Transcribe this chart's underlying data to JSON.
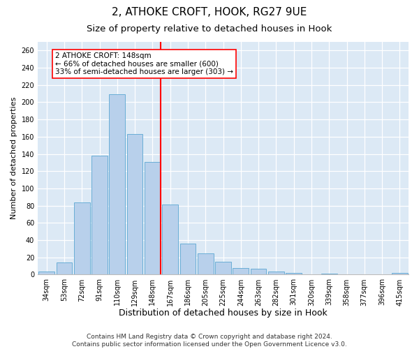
{
  "title": "2, ATHOKE CROFT, HOOK, RG27 9UE",
  "subtitle": "Size of property relative to detached houses in Hook",
  "xlabel": "Distribution of detached houses by size in Hook",
  "ylabel": "Number of detached properties",
  "categories": [
    "34sqm",
    "53sqm",
    "72sqm",
    "91sqm",
    "110sqm",
    "129sqm",
    "148sqm",
    "167sqm",
    "186sqm",
    "205sqm",
    "225sqm",
    "244sqm",
    "263sqm",
    "282sqm",
    "301sqm",
    "320sqm",
    "339sqm",
    "358sqm",
    "377sqm",
    "396sqm",
    "415sqm"
  ],
  "values": [
    4,
    14,
    84,
    138,
    209,
    163,
    131,
    81,
    36,
    25,
    15,
    8,
    7,
    4,
    2,
    0,
    1,
    0,
    0,
    0,
    2
  ],
  "bar_color": "#b8d0eb",
  "bar_edge_color": "#6aaed6",
  "marker_index": 6,
  "vline_color": "red",
  "annotation_line1": "2 ATHOKE CROFT: 148sqm",
  "annotation_line2": "← 66% of detached houses are smaller (600)",
  "annotation_line3": "33% of semi-detached houses are larger (303) →",
  "annotation_box_color": "white",
  "annotation_box_edge": "red",
  "ylim": [
    0,
    270
  ],
  "yticks": [
    0,
    20,
    40,
    60,
    80,
    100,
    120,
    140,
    160,
    180,
    200,
    220,
    240,
    260
  ],
  "plot_bg_color": "#dce9f5",
  "footer": "Contains HM Land Registry data © Crown copyright and database right 2024.\nContains public sector information licensed under the Open Government Licence v3.0.",
  "title_fontsize": 11,
  "subtitle_fontsize": 9.5,
  "xlabel_fontsize": 9,
  "ylabel_fontsize": 8,
  "tick_fontsize": 7,
  "annotation_fontsize": 7.5,
  "footer_fontsize": 6.5
}
